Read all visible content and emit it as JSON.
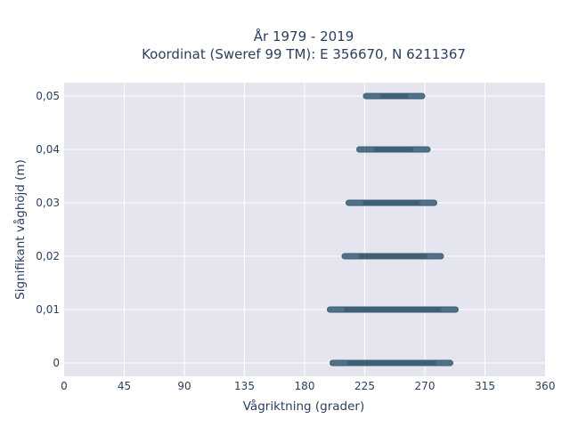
{
  "chart_data": {
    "type": "scatter",
    "title": "År 1979 - 2019",
    "subtitle": "Koordinat (Sweref 99 TM): E 356670, N 6211367",
    "xlabel": "Vågriktning (grader)",
    "ylabel": "Signifikant våghöjd (m)",
    "xlim": [
      0,
      360
    ],
    "ylim": [
      -0.0025,
      0.0525
    ],
    "x_ticks": [
      0,
      45,
      90,
      135,
      180,
      225,
      270,
      315,
      360
    ],
    "x_tick_labels": [
      "0",
      "45",
      "90",
      "135",
      "180",
      "225",
      "270",
      "315",
      "360"
    ],
    "y_ticks": [
      0,
      0.01,
      0.02,
      0.03,
      0.04,
      0.05
    ],
    "y_tick_labels": [
      "0",
      "0,01",
      "0,02",
      "0,03",
      "0,04",
      "0,05"
    ],
    "grid": true,
    "background": "#e5e5f0",
    "marker_color": "#34586e",
    "series": [
      {
        "points": [
          {
            "y": 0.0,
            "x_min": 201,
            "x_max": 289
          },
          {
            "y": 0.01,
            "x_min": 199,
            "x_max": 293
          },
          {
            "y": 0.02,
            "x_min": 210,
            "x_max": 282
          },
          {
            "y": 0.03,
            "x_min": 213,
            "x_max": 277
          },
          {
            "y": 0.04,
            "x_min": 221,
            "x_max": 272
          },
          {
            "y": 0.05,
            "x_min": 226,
            "x_max": 268
          }
        ]
      }
    ]
  }
}
